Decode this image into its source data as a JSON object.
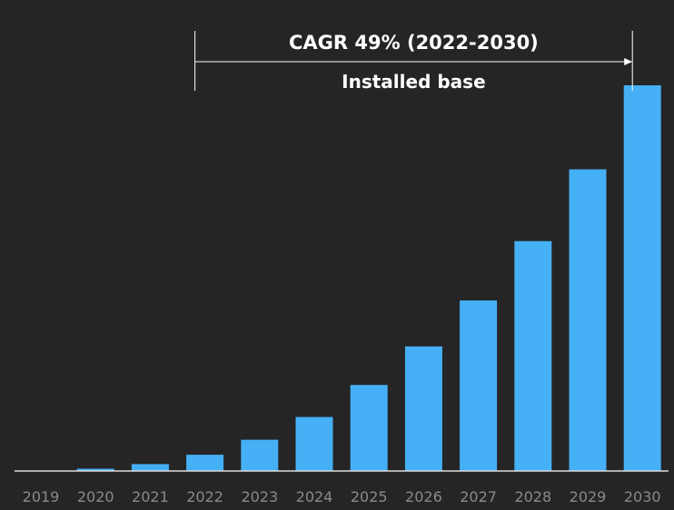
{
  "chart_data": {
    "type": "bar",
    "categories": [
      "2019",
      "2020",
      "2021",
      "2022",
      "2023",
      "2024",
      "2025",
      "2026",
      "2027",
      "2028",
      "2029",
      "2030"
    ],
    "values": [
      0,
      0.6,
      1.8,
      4.2,
      8.1,
      14.0,
      22.3,
      32.3,
      44.2,
      59.6,
      78.2,
      100
    ],
    "ylim": [
      0,
      100
    ],
    "bar_color": "#45B0F5",
    "annotation": {
      "title": "CAGR 49% (2022-2030)",
      "subtitle": "Installed base",
      "from": "2022",
      "to": "2030"
    },
    "grid": false,
    "legend": "none"
  },
  "colors": {
    "background": "#252525",
    "axis": "#dddddd",
    "tick_text": "#8a8a8a",
    "annotation": "#ffffff"
  }
}
